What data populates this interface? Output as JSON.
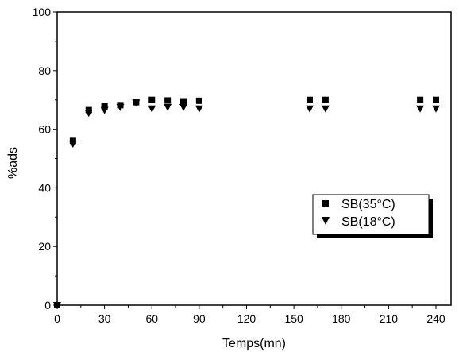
{
  "chart_data": {
    "type": "scatter",
    "title": "",
    "xlabel": "Temps(mn)",
    "ylabel": "%ads",
    "xlim": [
      0,
      245
    ],
    "ylim": [
      0,
      100
    ],
    "xticks": [
      0,
      30,
      60,
      90,
      120,
      150,
      180,
      210,
      240
    ],
    "yticks": [
      0,
      20,
      40,
      60,
      80,
      100
    ],
    "grid": false,
    "legend_position": "center-right",
    "series": [
      {
        "name": "SB(35°C)",
        "marker": "square",
        "color": "#000000",
        "x": [
          0,
          10,
          20,
          30,
          40,
          50,
          60,
          70,
          80,
          90,
          160,
          170,
          230,
          240
        ],
        "y": [
          0,
          56,
          66.5,
          67.8,
          68.2,
          69.2,
          70,
          69.8,
          69.5,
          69.7,
          70,
          70,
          70,
          70
        ]
      },
      {
        "name": "SB(18°C)",
        "marker": "triangle-down",
        "color": "#000000",
        "x": [
          0,
          10,
          20,
          30,
          40,
          50,
          60,
          70,
          80,
          90,
          160,
          170,
          230,
          240
        ],
        "y": [
          0,
          55,
          65.5,
          66.5,
          67.5,
          69,
          67,
          67.5,
          67.5,
          67,
          67,
          67,
          67,
          67
        ]
      }
    ]
  }
}
